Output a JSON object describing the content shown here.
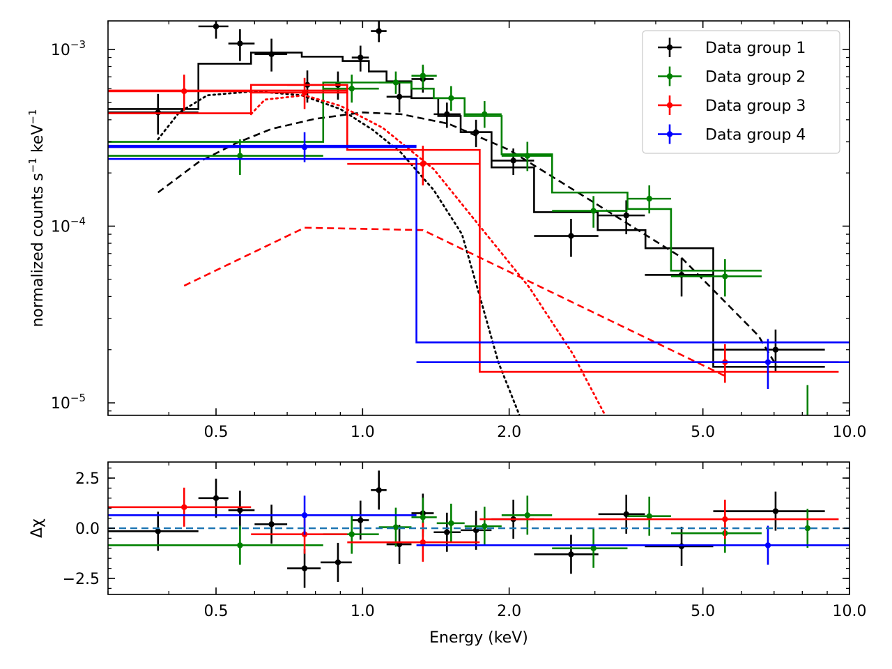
{
  "chart_data": [
    {
      "type": "scatter",
      "title": "",
      "xscale": "log",
      "yscale": "log",
      "xlim": [
        0.3,
        10.0
      ],
      "ylim": [
        8.5e-06,
        0.00145
      ],
      "xticks": [
        0.5,
        1.0,
        2.0,
        5.0,
        10.0
      ],
      "xtick_labels": [
        "0.5",
        "1.0",
        "2.0",
        "5.0",
        "10.0"
      ],
      "yticks": [
        1e-05,
        0.0001,
        0.001
      ],
      "ytick_labels": [
        {
          "base": "10",
          "exp": "−5"
        },
        {
          "base": "10",
          "exp": "−4"
        },
        {
          "base": "10",
          "exp": "−3"
        }
      ],
      "ylabel": {
        "main": "normalized counts s",
        "sup1": "−1",
        "mid": " keV",
        "sup2": "−1"
      },
      "legend": {
        "placement": "top-right",
        "entries": [
          "Data group 1",
          "Data group 2",
          "Data group 3",
          "Data group 4"
        ]
      },
      "series": [
        {
          "name": "Data group 1",
          "color": "#000000",
          "points": [
            {
              "x": 0.38,
              "xlo": 0.3,
              "xhi": 0.46,
              "y": 0.00044,
              "ylo": 0.00033,
              "yhi": 0.00056
            },
            {
              "x": 0.5,
              "xlo": 0.46,
              "xhi": 0.53,
              "y": 0.00135,
              "ylo": 0.00115,
              "yhi": 0.0015
            },
            {
              "x": 0.56,
              "xlo": 0.53,
              "xhi": 0.6,
              "y": 0.00108,
              "ylo": 0.00086,
              "yhi": 0.0013
            },
            {
              "x": 0.65,
              "xlo": 0.6,
              "xhi": 0.7,
              "y": 0.00094,
              "ylo": 0.00075,
              "yhi": 0.00115
            },
            {
              "x": 0.77,
              "xlo": 0.7,
              "xhi": 0.82,
              "y": 0.00063,
              "ylo": 0.0005,
              "yhi": 0.00076
            },
            {
              "x": 0.89,
              "xlo": 0.85,
              "xhi": 0.93,
              "y": 0.00063,
              "ylo": 0.00052,
              "yhi": 0.00075
            },
            {
              "x": 0.99,
              "xlo": 0.95,
              "xhi": 1.03,
              "y": 0.0009,
              "ylo": 0.00075,
              "yhi": 0.00105
            },
            {
              "x": 1.08,
              "xlo": 1.04,
              "xhi": 1.12,
              "y": 0.00127,
              "ylo": 0.0011,
              "yhi": 0.00145
            },
            {
              "x": 1.19,
              "xlo": 1.12,
              "xhi": 1.26,
              "y": 0.00054,
              "ylo": 0.00044,
              "yhi": 0.00065
            },
            {
              "x": 1.33,
              "xlo": 1.26,
              "xhi": 1.4,
              "y": 0.00068,
              "ylo": 0.00057,
              "yhi": 0.0008
            },
            {
              "x": 1.49,
              "xlo": 1.4,
              "xhi": 1.59,
              "y": 0.00043,
              "ylo": 0.00036,
              "yhi": 0.0005
            },
            {
              "x": 1.71,
              "xlo": 1.59,
              "xhi": 1.84,
              "y": 0.00034,
              "ylo": 0.00028,
              "yhi": 0.0004
            },
            {
              "x": 2.04,
              "xlo": 1.84,
              "xhi": 2.25,
              "y": 0.000235,
              "ylo": 0.000195,
              "yhi": 0.000275
            },
            {
              "x": 2.68,
              "xlo": 2.25,
              "xhi": 3.05,
              "y": 8.8e-05,
              "ylo": 6.7e-05,
              "yhi": 0.00011
            },
            {
              "x": 3.48,
              "xlo": 3.05,
              "xhi": 3.8,
              "y": 0.000115,
              "ylo": 9e-05,
              "yhi": 0.00014
            },
            {
              "x": 4.52,
              "xlo": 3.8,
              "xhi": 5.25,
              "y": 5.3e-05,
              "ylo": 4e-05,
              "yhi": 6.6e-05
            },
            {
              "x": 7.05,
              "xlo": 5.25,
              "xhi": 8.9,
              "y": 2e-05,
              "ylo": 1.5e-05,
              "yhi": 2.6e-05
            }
          ],
          "model_steps": [
            [
              0.3,
              0.00046
            ],
            [
              0.46,
              0.00083
            ],
            [
              0.59,
              0.00096
            ],
            [
              0.75,
              0.00091
            ],
            [
              0.91,
              0.00086
            ],
            [
              1.03,
              0.00075
            ],
            [
              1.12,
              0.00066
            ],
            [
              1.26,
              0.00053
            ],
            [
              1.43,
              0.00042
            ],
            [
              1.59,
              0.00034
            ],
            [
              1.84,
              0.000215
            ],
            [
              2.25,
              0.00012
            ],
            [
              3.04,
              9.5e-05
            ],
            [
              3.81,
              7.5e-05
            ],
            [
              5.25,
              1.6e-05
            ],
            [
              8.9,
              1.6e-05
            ]
          ],
          "component_dashed": [
            [
              0.38,
              0.000155
            ],
            [
              0.46,
              0.00023
            ],
            [
              0.55,
              0.000295
            ],
            [
              0.65,
              0.000355
            ],
            [
              0.8,
              0.000405
            ],
            [
              1.0,
              0.00044
            ],
            [
              1.2,
              0.00043
            ],
            [
              1.5,
              0.00038
            ],
            [
              2.0,
              0.00027
            ],
            [
              3.0,
              0.000135
            ],
            [
              4.5,
              6.7e-05
            ],
            [
              6.5,
              2.4e-05
            ],
            [
              7.1,
              1.6e-05
            ]
          ],
          "component_dotted": [
            [
              0.38,
              0.00031
            ],
            [
              0.42,
              0.00044
            ],
            [
              0.48,
              0.00055
            ],
            [
              0.6,
              0.00058
            ],
            [
              0.75,
              0.00055
            ],
            [
              0.9,
              0.00046
            ],
            [
              1.05,
              0.00035
            ],
            [
              1.2,
              0.00026
            ],
            [
              1.4,
              0.00016
            ],
            [
              1.6,
              9e-05
            ],
            [
              1.75,
              3.8e-05
            ],
            [
              1.9,
              1.7e-05
            ],
            [
              2.1,
              8.5e-06
            ]
          ]
        },
        {
          "name": "Data group 2",
          "color": "#008000",
          "points": [
            {
              "x": 0.56,
              "xlo": 0.3,
              "xhi": 0.83,
              "y": 0.00025,
              "ylo": 0.000195,
              "yhi": 0.00031
            },
            {
              "x": 0.95,
              "xlo": 0.83,
              "xhi": 1.08,
              "y": 0.0006,
              "ylo": 0.0005,
              "yhi": 0.00072
            },
            {
              "x": 1.17,
              "xlo": 1.08,
              "xhi": 1.26,
              "y": 0.00065,
              "ylo": 0.00056,
              "yhi": 0.00075
            },
            {
              "x": 1.33,
              "xlo": 1.26,
              "xhi": 1.42,
              "y": 0.00071,
              "ylo": 0.00061,
              "yhi": 0.00082
            },
            {
              "x": 1.52,
              "xlo": 1.42,
              "xhi": 1.62,
              "y": 0.00053,
              "ylo": 0.00045,
              "yhi": 0.00062
            },
            {
              "x": 1.78,
              "xlo": 1.62,
              "xhi": 1.93,
              "y": 0.00043,
              "ylo": 0.00036,
              "yhi": 0.00051
            },
            {
              "x": 2.18,
              "xlo": 1.93,
              "xhi": 2.45,
              "y": 0.00025,
              "ylo": 0.000205,
              "yhi": 0.0003
            },
            {
              "x": 2.98,
              "xlo": 2.45,
              "xhi": 3.5,
              "y": 0.000122,
              "ylo": 9.8e-05,
              "yhi": 0.000148
            },
            {
              "x": 3.88,
              "xlo": 3.5,
              "xhi": 4.3,
              "y": 0.000143,
              "ylo": 0.000118,
              "yhi": 0.00017
            },
            {
              "x": 5.55,
              "xlo": 4.3,
              "xhi": 6.6,
              "y": 5.2e-05,
              "ylo": 4e-05,
              "yhi": 6.5e-05
            },
            {
              "x": 8.2,
              "xlo": 8.2,
              "xhi": 8.2,
              "y": 8e-06,
              "ylo": 5.5e-06,
              "yhi": 1.26e-05
            }
          ],
          "model_steps": [
            [
              0.3,
              0.0003
            ],
            [
              0.83,
              0.00065
            ],
            [
              1.03,
              0.00065
            ],
            [
              1.26,
              0.0006
            ],
            [
              1.4,
              0.00053
            ],
            [
              1.62,
              0.00042
            ],
            [
              1.93,
              0.000255
            ],
            [
              2.45,
              0.000155
            ],
            [
              3.5,
              0.000125
            ],
            [
              4.3,
              5.6e-05
            ],
            [
              6.6,
              8.5e-06
            ]
          ]
        },
        {
          "name": "Data group 3",
          "color": "#ff0000",
          "points": [
            {
              "x": 0.43,
              "xlo": 0.3,
              "xhi": 0.59,
              "y": 0.00058,
              "ylo": 0.00045,
              "yhi": 0.00072
            },
            {
              "x": 0.76,
              "xlo": 0.59,
              "xhi": 0.93,
              "y": 0.00057,
              "ylo": 0.00046,
              "yhi": 0.00069
            },
            {
              "x": 1.33,
              "xlo": 0.93,
              "xhi": 1.74,
              "y": 0.000225,
              "ylo": 0.00017,
              "yhi": 0.000285
            },
            {
              "x": 5.55,
              "xlo": 1.74,
              "xhi": 9.5,
              "y": 1.7e-05,
              "ylo": 1.3e-05,
              "yhi": 2.15e-05
            }
          ],
          "model_steps": [
            [
              0.3,
              0.000435
            ],
            [
              0.59,
              0.00063
            ],
            [
              0.93,
              0.00027
            ],
            [
              1.74,
              1.5e-05
            ],
            [
              9.5,
              1.5e-05
            ]
          ],
          "model_steps_2": [
            [
              0.3,
              0.000585
            ],
            [
              0.93,
              0.000585
            ]
          ],
          "component_dashed": [
            [
              0.43,
              4.6e-05
            ],
            [
              0.76,
              9.8e-05
            ],
            [
              1.33,
              9.5e-05
            ],
            [
              5.55,
              1.42e-05
            ]
          ],
          "component_dotted": [
            [
              0.59,
              0.00043
            ],
            [
              0.63,
              0.00052
            ],
            [
              0.76,
              0.00055
            ],
            [
              0.9,
              0.00048
            ],
            [
              1.1,
              0.00036
            ],
            [
              1.4,
              0.00021
            ],
            [
              1.74,
              0.0001
            ],
            [
              2.2,
              4.5e-05
            ],
            [
              2.7,
              1.9e-05
            ],
            [
              3.15,
              8.5e-06
            ]
          ]
        },
        {
          "name": "Data group 4",
          "color": "#0000ff",
          "points": [
            {
              "x": 0.76,
              "xlo": 0.3,
              "xhi": 1.29,
              "y": 0.00028,
              "ylo": 0.00023,
              "yhi": 0.00034
            },
            {
              "x": 6.8,
              "xlo": 1.29,
              "xhi": 10.0,
              "y": 1.7e-05,
              "ylo": 1.2e-05,
              "yhi": 2.3e-05
            }
          ],
          "model_steps": [
            [
              0.3,
              0.00024
            ],
            [
              1.29,
              2.2e-05
            ],
            [
              10.0,
              2.2e-05
            ]
          ],
          "model_steps_2": [
            [
              0.3,
              0.000285
            ],
            [
              1.29,
              0.000285
            ]
          ]
        }
      ]
    },
    {
      "type": "scatter",
      "xscale": "log",
      "yscale": "linear",
      "xlim": [
        0.3,
        10.0
      ],
      "ylim": [
        -3.3,
        3.3
      ],
      "xticks": [
        0.5,
        1.0,
        2.0,
        5.0,
        10.0
      ],
      "xtick_labels": [
        "0.5",
        "1.0",
        "2.0",
        "5.0",
        "10.0"
      ],
      "yticks": [
        -2.5,
        0.0,
        2.5
      ],
      "ytick_labels": [
        "−2.5",
        "0.0",
        "2.5"
      ],
      "xlabel": "Energy (keV)",
      "ylabel": "Δχ",
      "zero_line": {
        "y": 0,
        "color": "#1f77b4",
        "style": "dashed"
      },
      "series": [
        {
          "name": "Data group 1",
          "color": "#000000",
          "points": [
            {
              "x": 0.38,
              "xlo": 0.3,
              "xhi": 0.46,
              "y": -0.15
            },
            {
              "x": 0.5,
              "xlo": 0.46,
              "xhi": 0.53,
              "y": 1.5
            },
            {
              "x": 0.56,
              "xlo": 0.53,
              "xhi": 0.6,
              "y": 0.9
            },
            {
              "x": 0.65,
              "xlo": 0.6,
              "xhi": 0.7,
              "y": 0.2
            },
            {
              "x": 0.76,
              "xlo": 0.7,
              "xhi": 0.82,
              "y": -2.0
            },
            {
              "x": 0.89,
              "xlo": 0.82,
              "xhi": 0.95,
              "y": -1.7
            },
            {
              "x": 0.99,
              "xlo": 0.95,
              "xhi": 1.03,
              "y": 0.4
            },
            {
              "x": 1.08,
              "xlo": 1.04,
              "xhi": 1.12,
              "y": 1.9
            },
            {
              "x": 1.19,
              "xlo": 1.12,
              "xhi": 1.26,
              "y": -0.8
            },
            {
              "x": 1.33,
              "xlo": 1.26,
              "xhi": 1.4,
              "y": 0.75
            },
            {
              "x": 1.49,
              "xlo": 1.4,
              "xhi": 1.59,
              "y": -0.2
            },
            {
              "x": 1.71,
              "xlo": 1.59,
              "xhi": 1.84,
              "y": -0.1
            },
            {
              "x": 2.04,
              "xlo": 1.84,
              "xhi": 2.25,
              "y": 0.45
            },
            {
              "x": 2.68,
              "xlo": 2.25,
              "xhi": 3.05,
              "y": -1.3
            },
            {
              "x": 3.48,
              "xlo": 3.05,
              "xhi": 3.8,
              "y": 0.7
            },
            {
              "x": 4.52,
              "xlo": 3.8,
              "xhi": 5.25,
              "y": -0.9
            },
            {
              "x": 7.05,
              "xlo": 5.25,
              "xhi": 8.9,
              "y": 0.85
            }
          ]
        },
        {
          "name": "Data group 2",
          "color": "#008000",
          "points": [
            {
              "x": 0.56,
              "xlo": 0.3,
              "xhi": 0.83,
              "y": -0.85
            },
            {
              "x": 0.95,
              "xlo": 0.83,
              "xhi": 1.08,
              "y": -0.3
            },
            {
              "x": 1.17,
              "xlo": 1.08,
              "xhi": 1.26,
              "y": 0.05
            },
            {
              "x": 1.33,
              "xlo": 1.26,
              "xhi": 1.42,
              "y": 0.55
            },
            {
              "x": 1.52,
              "xlo": 1.42,
              "xhi": 1.62,
              "y": 0.25
            },
            {
              "x": 1.78,
              "xlo": 1.62,
              "xhi": 1.93,
              "y": 0.1
            },
            {
              "x": 2.18,
              "xlo": 1.93,
              "xhi": 2.45,
              "y": 0.65
            },
            {
              "x": 2.98,
              "xlo": 2.45,
              "xhi": 3.5,
              "y": -1.0
            },
            {
              "x": 3.88,
              "xlo": 3.5,
              "xhi": 4.3,
              "y": 0.6
            },
            {
              "x": 5.55,
              "xlo": 4.3,
              "xhi": 6.6,
              "y": -0.25
            },
            {
              "x": 8.2,
              "xlo": 8.2,
              "xhi": 8.2,
              "y": 0.0
            }
          ]
        },
        {
          "name": "Data group 3",
          "color": "#ff0000",
          "points": [
            {
              "x": 0.43,
              "xlo": 0.3,
              "xhi": 0.59,
              "y": 1.05
            },
            {
              "x": 0.76,
              "xlo": 0.59,
              "xhi": 0.93,
              "y": -0.3
            },
            {
              "x": 1.33,
              "xlo": 0.93,
              "xhi": 1.74,
              "y": -0.7
            },
            {
              "x": 5.55,
              "xlo": 1.74,
              "xhi": 9.5,
              "y": 0.45
            }
          ]
        },
        {
          "name": "Data group 4",
          "color": "#0000ff",
          "points": [
            {
              "x": 0.76,
              "xlo": 0.3,
              "xhi": 1.29,
              "y": 0.65
            },
            {
              "x": 6.8,
              "xlo": 1.29,
              "xhi": 10.0,
              "y": -0.85
            }
          ]
        }
      ]
    }
  ]
}
